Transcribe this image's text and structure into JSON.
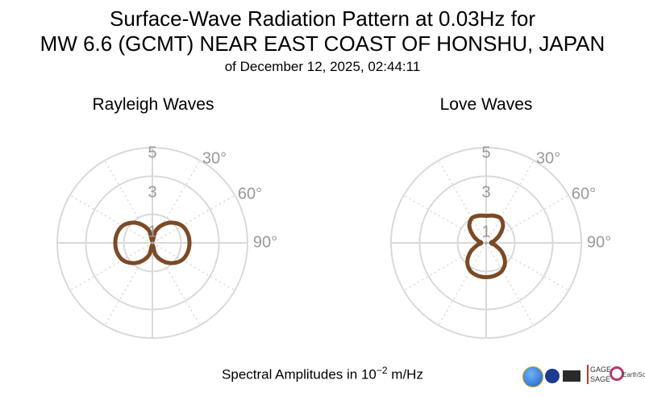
{
  "title": {
    "line1": "Surface-Wave Radiation Pattern at 0.03Hz for",
    "line2": "MW 6.6 (GCMT) NEAR EAST COAST OF HONSHU, JAPAN",
    "subtitle": "of December 12, 2025, 02:44:11"
  },
  "xlabel": {
    "prefix": "Spectral Amplitudes in ",
    "base": "10",
    "exponent": "−2",
    "unit": " m/Hz"
  },
  "logos": {
    "gage": "GAGE",
    "sage": "SAGE",
    "earthscope": "EarthScope"
  },
  "colors": {
    "pattern": "#7b4a26",
    "grid": "#d9d9d9",
    "label": "#999999"
  },
  "chart_data": [
    {
      "type": "polar-line",
      "title": "Rayleigh Waves",
      "radial_ticks": [
        "1",
        "3",
        "5"
      ],
      "radial_tick_values": [
        1,
        3,
        5
      ],
      "r_max": 5,
      "angle_labels": [
        "30°",
        "60°",
        "90°"
      ],
      "angle_label_values": [
        30,
        60,
        90
      ],
      "theta_deg": [
        0,
        15,
        30,
        45,
        60,
        75,
        90,
        105,
        120,
        135,
        150,
        165,
        180,
        195,
        210,
        225,
        240,
        255,
        270,
        285,
        300,
        315,
        330,
        345
      ],
      "r": [
        0.1,
        0.65,
        1.1,
        1.5,
        1.8,
        1.92,
        1.95,
        1.92,
        1.8,
        1.5,
        1.1,
        0.65,
        0.1,
        0.65,
        1.1,
        1.5,
        1.8,
        1.92,
        1.95,
        1.92,
        1.8,
        1.5,
        1.1,
        0.65
      ]
    },
    {
      "type": "polar-line",
      "title": "Love Waves",
      "radial_ticks": [
        "1",
        "3",
        "5"
      ],
      "radial_tick_values": [
        1,
        3,
        5
      ],
      "r_max": 5,
      "angle_labels": [
        "30°",
        "60°",
        "90°"
      ],
      "angle_label_values": [
        30,
        60,
        90
      ],
      "theta_deg": [
        0,
        15,
        30,
        45,
        60,
        75,
        90,
        105,
        120,
        135,
        150,
        165,
        180,
        195,
        210,
        225,
        240,
        255,
        270,
        285,
        300,
        315,
        330,
        345
      ],
      "r": [
        1.42,
        1.48,
        1.5,
        1.25,
        0.8,
        0.45,
        0.25,
        0.5,
        0.95,
        1.4,
        1.68,
        1.78,
        1.8,
        1.78,
        1.68,
        1.4,
        0.95,
        0.5,
        0.25,
        0.45,
        0.8,
        1.25,
        1.5,
        1.48
      ]
    }
  ]
}
